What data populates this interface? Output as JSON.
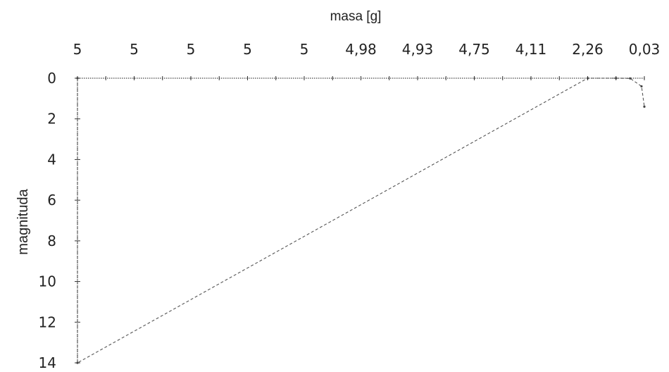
{
  "chart_data": {
    "type": "line",
    "xlabel": "masa [g]",
    "ylabel": "magnituda",
    "x_axis_position": "top",
    "y_axis_inverted": true,
    "x_tick_labels": [
      "5",
      "5",
      "5",
      "5",
      "5",
      "4,98",
      "4,93",
      "4,75",
      "4,11",
      "2,26",
      "0,03"
    ],
    "y_ticks": [
      "0",
      "2",
      "4",
      "6",
      "8",
      "10",
      "12",
      "14"
    ],
    "ylim": [
      0,
      14
    ],
    "x_index_range": [
      0,
      20
    ],
    "series": [
      {
        "points": [
          {
            "x": 0,
            "y": 0
          },
          {
            "x": 0,
            "y": 14
          },
          {
            "x": 18,
            "y": 0
          },
          {
            "x": 19,
            "y": 0
          },
          {
            "x": 19.5,
            "y": 0.01
          },
          {
            "x": 19.9,
            "y": 0.4
          },
          {
            "x": 20,
            "y": 1.4
          }
        ]
      }
    ]
  }
}
